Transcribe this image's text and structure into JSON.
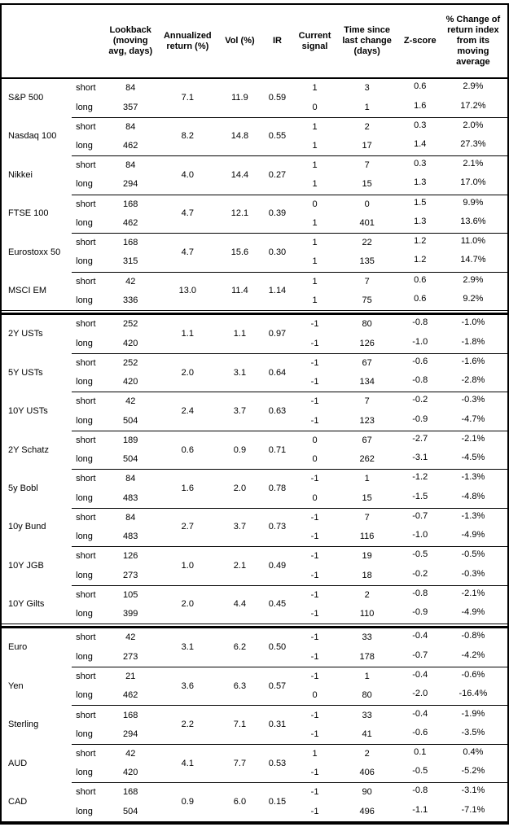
{
  "colors": {
    "background": "#ffffff",
    "text": "#000000",
    "border": "#000000"
  },
  "table": {
    "column_headers": {
      "asset": "",
      "horizon": "",
      "lookback": "Lookback\n(moving\navg, days)",
      "annualized_return": "Annualized\nreturn (%)",
      "vol": "Vol (%)",
      "ir": "IR",
      "current_signal": "Current\nsignal",
      "time_since": "Time since\nlast change\n(days)",
      "zscore": "Z-score",
      "pct_change": "% Change of\nreturn index\nfrom its\nmoving\naverage"
    },
    "row_labels": {
      "short": "short",
      "long": "long"
    },
    "sections": [
      {
        "assets": [
          {
            "name": "S&P 500",
            "annualized_return": "7.1",
            "vol": "11.9",
            "ir": "0.59",
            "short": {
              "lookback": "84",
              "signal": "1",
              "time_since": "3",
              "zscore": "0.6",
              "pct_change": "2.9%"
            },
            "long": {
              "lookback": "357",
              "signal": "0",
              "time_since": "1",
              "zscore": "1.6",
              "pct_change": "17.2%"
            }
          },
          {
            "name": "Nasdaq 100",
            "annualized_return": "8.2",
            "vol": "14.8",
            "ir": "0.55",
            "short": {
              "lookback": "84",
              "signal": "1",
              "time_since": "2",
              "zscore": "0.3",
              "pct_change": "2.0%"
            },
            "long": {
              "lookback": "462",
              "signal": "1",
              "time_since": "17",
              "zscore": "1.4",
              "pct_change": "27.3%"
            }
          },
          {
            "name": "Nikkei",
            "annualized_return": "4.0",
            "vol": "14.4",
            "ir": "0.27",
            "short": {
              "lookback": "84",
              "signal": "1",
              "time_since": "7",
              "zscore": "0.3",
              "pct_change": "2.1%"
            },
            "long": {
              "lookback": "294",
              "signal": "1",
              "time_since": "15",
              "zscore": "1.3",
              "pct_change": "17.0%"
            }
          },
          {
            "name": "FTSE 100",
            "annualized_return": "4.7",
            "vol": "12.1",
            "ir": "0.39",
            "short": {
              "lookback": "168",
              "signal": "0",
              "time_since": "0",
              "zscore": "1.5",
              "pct_change": "9.9%"
            },
            "long": {
              "lookback": "462",
              "signal": "1",
              "time_since": "401",
              "zscore": "1.3",
              "pct_change": "13.6%"
            }
          },
          {
            "name": "Eurostoxx 50",
            "annualized_return": "4.7",
            "vol": "15.6",
            "ir": "0.30",
            "short": {
              "lookback": "168",
              "signal": "1",
              "time_since": "22",
              "zscore": "1.2",
              "pct_change": "11.0%"
            },
            "long": {
              "lookback": "315",
              "signal": "1",
              "time_since": "135",
              "zscore": "1.2",
              "pct_change": "14.7%"
            }
          },
          {
            "name": "MSCI EM",
            "annualized_return": "13.0",
            "vol": "11.4",
            "ir": "1.14",
            "short": {
              "lookback": "42",
              "signal": "1",
              "time_since": "7",
              "zscore": "0.6",
              "pct_change": "2.9%"
            },
            "long": {
              "lookback": "336",
              "signal": "1",
              "time_since": "75",
              "zscore": "0.6",
              "pct_change": "9.2%"
            }
          }
        ]
      },
      {
        "assets": [
          {
            "name": "2Y USTs",
            "annualized_return": "1.1",
            "vol": "1.1",
            "ir": "0.97",
            "short": {
              "lookback": "252",
              "signal": "-1",
              "time_since": "80",
              "zscore": "-0.8",
              "pct_change": "-1.0%"
            },
            "long": {
              "lookback": "420",
              "signal": "-1",
              "time_since": "126",
              "zscore": "-1.0",
              "pct_change": "-1.8%"
            }
          },
          {
            "name": "5Y USTs",
            "annualized_return": "2.0",
            "vol": "3.1",
            "ir": "0.64",
            "short": {
              "lookback": "252",
              "signal": "-1",
              "time_since": "67",
              "zscore": "-0.6",
              "pct_change": "-1.6%"
            },
            "long": {
              "lookback": "420",
              "signal": "-1",
              "time_since": "134",
              "zscore": "-0.8",
              "pct_change": "-2.8%"
            }
          },
          {
            "name": "10Y USTs",
            "annualized_return": "2.4",
            "vol": "3.7",
            "ir": "0.63",
            "short": {
              "lookback": "42",
              "signal": "-1",
              "time_since": "7",
              "zscore": "-0.2",
              "pct_change": "-0.3%"
            },
            "long": {
              "lookback": "504",
              "signal": "-1",
              "time_since": "123",
              "zscore": "-0.9",
              "pct_change": "-4.7%"
            }
          },
          {
            "name": "2Y Schatz",
            "annualized_return": "0.6",
            "vol": "0.9",
            "ir": "0.71",
            "short": {
              "lookback": "189",
              "signal": "0",
              "time_since": "67",
              "zscore": "-2.7",
              "pct_change": "-2.1%"
            },
            "long": {
              "lookback": "504",
              "signal": "0",
              "time_since": "262",
              "zscore": "-3.1",
              "pct_change": "-4.5%"
            }
          },
          {
            "name": "5y Bobl",
            "annualized_return": "1.6",
            "vol": "2.0",
            "ir": "0.78",
            "short": {
              "lookback": "84",
              "signal": "-1",
              "time_since": "1",
              "zscore": "-1.2",
              "pct_change": "-1.3%"
            },
            "long": {
              "lookback": "483",
              "signal": "0",
              "time_since": "15",
              "zscore": "-1.5",
              "pct_change": "-4.8%"
            }
          },
          {
            "name": "10y Bund",
            "annualized_return": "2.7",
            "vol": "3.7",
            "ir": "0.73",
            "short": {
              "lookback": "84",
              "signal": "-1",
              "time_since": "7",
              "zscore": "-0.7",
              "pct_change": "-1.3%"
            },
            "long": {
              "lookback": "483",
              "signal": "-1",
              "time_since": "116",
              "zscore": "-1.0",
              "pct_change": "-4.9%"
            }
          },
          {
            "name": "10Y JGB",
            "annualized_return": "1.0",
            "vol": "2.1",
            "ir": "0.49",
            "short": {
              "lookback": "126",
              "signal": "-1",
              "time_since": "19",
              "zscore": "-0.5",
              "pct_change": "-0.5%"
            },
            "long": {
              "lookback": "273",
              "signal": "-1",
              "time_since": "18",
              "zscore": "-0.2",
              "pct_change": "-0.3%"
            }
          },
          {
            "name": "10Y Gilts",
            "annualized_return": "2.0",
            "vol": "4.4",
            "ir": "0.45",
            "short": {
              "lookback": "105",
              "signal": "-1",
              "time_since": "2",
              "zscore": "-0.8",
              "pct_change": "-2.1%"
            },
            "long": {
              "lookback": "399",
              "signal": "-1",
              "time_since": "110",
              "zscore": "-0.9",
              "pct_change": "-4.9%"
            }
          }
        ]
      },
      {
        "assets": [
          {
            "name": "Euro",
            "annualized_return": "3.1",
            "vol": "6.2",
            "ir": "0.50",
            "short": {
              "lookback": "42",
              "signal": "-1",
              "time_since": "33",
              "zscore": "-0.4",
              "pct_change": "-0.8%"
            },
            "long": {
              "lookback": "273",
              "signal": "-1",
              "time_since": "178",
              "zscore": "-0.7",
              "pct_change": "-4.2%"
            }
          },
          {
            "name": "Yen",
            "annualized_return": "3.6",
            "vol": "6.3",
            "ir": "0.57",
            "short": {
              "lookback": "21",
              "signal": "-1",
              "time_since": "1",
              "zscore": "-0.4",
              "pct_change": "-0.6%"
            },
            "long": {
              "lookback": "462",
              "signal": "0",
              "time_since": "80",
              "zscore": "-2.0",
              "pct_change": "-16.4%"
            }
          },
          {
            "name": "Sterling",
            "annualized_return": "2.2",
            "vol": "7.1",
            "ir": "0.31",
            "short": {
              "lookback": "168",
              "signal": "-1",
              "time_since": "33",
              "zscore": "-0.4",
              "pct_change": "-1.9%"
            },
            "long": {
              "lookback": "294",
              "signal": "-1",
              "time_since": "41",
              "zscore": "-0.6",
              "pct_change": "-3.5%"
            }
          },
          {
            "name": "AUD",
            "annualized_return": "4.1",
            "vol": "7.7",
            "ir": "0.53",
            "short": {
              "lookback": "42",
              "signal": "1",
              "time_since": "2",
              "zscore": "0.1",
              "pct_change": "0.4%"
            },
            "long": {
              "lookback": "420",
              "signal": "-1",
              "time_since": "406",
              "zscore": "-0.5",
              "pct_change": "-5.2%"
            }
          },
          {
            "name": "CAD",
            "annualized_return": "0.9",
            "vol": "6.0",
            "ir": "0.15",
            "short": {
              "lookback": "168",
              "signal": "-1",
              "time_since": "90",
              "zscore": "-0.8",
              "pct_change": "-3.1%"
            },
            "long": {
              "lookback": "504",
              "signal": "-1",
              "time_since": "496",
              "zscore": "-1.1",
              "pct_change": "-7.1%"
            }
          }
        ]
      }
    ]
  }
}
